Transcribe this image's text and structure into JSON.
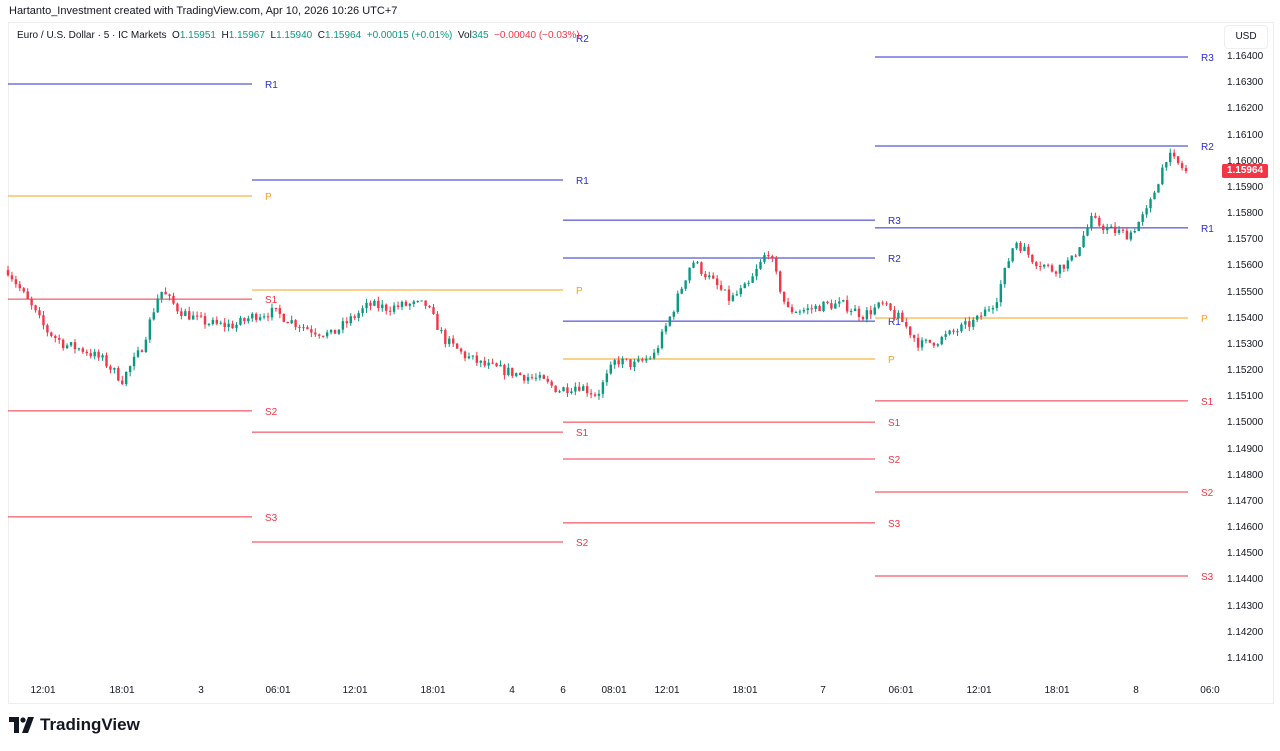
{
  "credit": "Hartanto_Investment created with TradingView.com, Apr 10, 2026 10:26 UTC+7",
  "legend": {
    "symbol": "Euro / U.S. Dollar · 5 · IC Markets",
    "open_label": "O",
    "open": "1.15951",
    "high_label": "H",
    "high": "1.15967",
    "low_label": "L",
    "low": "1.15940",
    "close_label": "C",
    "close": "1.15964",
    "change": "+0.00015 (+0.01%)",
    "vol_label": "Vol",
    "vol": "345",
    "vol_change": "−0.00040 (−0.03%)"
  },
  "currency": "USD",
  "last_price": "1.15964",
  "brand": "TradingView",
  "chart_data": {
    "type": "candlestick",
    "symbol": "EURUSD 5m",
    "ylim": [
      1.1405,
      1.1652
    ],
    "y_ticks": [
      "1.16400",
      "1.16300",
      "1.16200",
      "1.16100",
      "1.16000",
      "1.15900",
      "1.15800",
      "1.15700",
      "1.15600",
      "1.15500",
      "1.15400",
      "1.15300",
      "1.15200",
      "1.15100",
      "1.15000",
      "1.14900",
      "1.14800",
      "1.14700",
      "1.14600",
      "1.14500",
      "1.14400",
      "1.14300",
      "1.14200",
      "1.14100"
    ],
    "x_ticks": [
      "12:01",
      "18:01",
      "3",
      "06:01",
      "12:01",
      "18:01",
      "4",
      "6",
      "08:01",
      "12:01",
      "18:01",
      "7",
      "06:01",
      "12:01",
      "18:01",
      "8",
      "06:0"
    ],
    "price_path": [
      1.15586,
      1.15472,
      1.15357,
      1.153,
      1.15281,
      1.15242,
      1.15166,
      1.15281,
      1.1551,
      1.15433,
      1.15395,
      1.15376,
      1.15376,
      1.15414,
      1.15426,
      1.15388,
      1.15357,
      1.15338,
      1.15395,
      1.15453,
      1.15441,
      1.15453,
      1.15453,
      1.15319,
      1.15261,
      1.15223,
      1.15204,
      1.15185,
      1.15166,
      1.15128,
      1.15147,
      1.15109,
      1.15242,
      1.15223,
      1.15261,
      1.15433,
      1.15624,
      1.15548,
      1.15472,
      1.15529,
      1.15663,
      1.15433,
      1.15433,
      1.15453,
      1.15453,
      1.15414,
      1.15453,
      1.15395,
      1.153,
      1.15319,
      1.15357,
      1.15395,
      1.15472,
      1.15701,
      1.15624,
      1.15586,
      1.15624,
      1.15777,
      1.15739,
      1.1572,
      1.15815,
      1.16026,
      1.15964
    ],
    "colors": {
      "up": "#089981",
      "down": "#f23645",
      "resistance": "#2a2ecd",
      "pivot": "#f7a21b",
      "support": "#f23645"
    },
    "pivot_sessions": [
      {
        "levels": [
          {
            "name": "R1",
            "price": 1.16297
          },
          {
            "name": "P",
            "price": 1.15869
          },
          {
            "name": "S1",
            "price": 1.15475
          },
          {
            "name": "S2",
            "price": 1.15048
          },
          {
            "name": "S3",
            "price": 1.14643
          }
        ]
      },
      {
        "levels": [
          {
            "name": "R2",
            "price": 1.1648
          },
          {
            "name": "R1",
            "price": 1.1593
          },
          {
            "name": "P",
            "price": 1.1551
          },
          {
            "name": "S1",
            "price": 1.14967
          },
          {
            "name": "S2",
            "price": 1.14547
          }
        ]
      },
      {
        "levels": [
          {
            "name": "R3",
            "price": 1.15777
          },
          {
            "name": "R2",
            "price": 1.15632
          },
          {
            "name": "R1",
            "price": 1.15391
          },
          {
            "name": "P",
            "price": 1.15246
          },
          {
            "name": "S1",
            "price": 1.15005
          },
          {
            "name": "S2",
            "price": 1.14864
          },
          {
            "name": "S3",
            "price": 1.1462
          }
        ]
      },
      {
        "levels": [
          {
            "name": "R3",
            "price": 1.164
          },
          {
            "name": "R2",
            "price": 1.1606
          },
          {
            "name": "R1",
            "price": 1.15747
          },
          {
            "name": "P",
            "price": 1.15403
          },
          {
            "name": "S1",
            "price": 1.15086
          },
          {
            "name": "S2",
            "price": 1.14738
          },
          {
            "name": "S3",
            "price": 1.14417
          }
        ]
      }
    ]
  }
}
